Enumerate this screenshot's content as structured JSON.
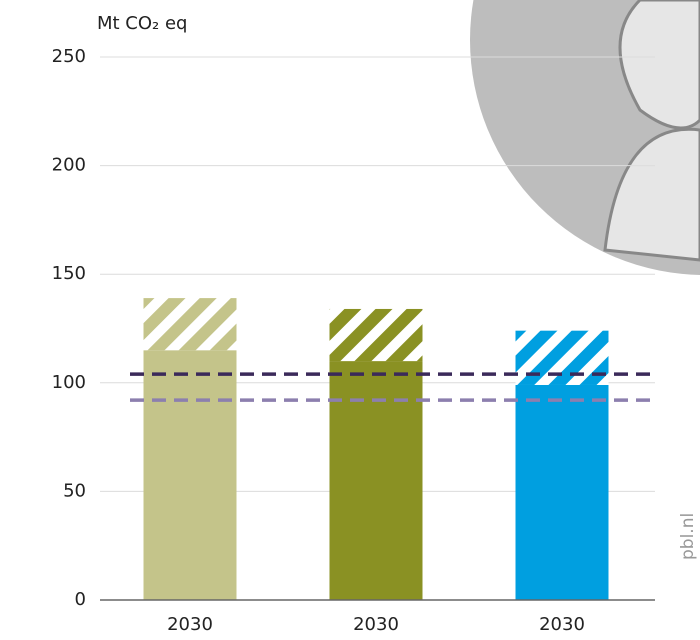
{
  "chart_data": {
    "type": "bar",
    "stacked": true,
    "y_label": "Mt CO₂ eq",
    "source": "pbl.nl",
    "categories": [
      "2030",
      "2030",
      "2030"
    ],
    "series": [
      {
        "values": [
          115,
          110,
          99
        ],
        "colors": [
          "#c4c48a",
          "#8a9123",
          "#009fe0"
        ],
        "hatched": false
      },
      {
        "values": [
          24,
          24,
          25
        ],
        "colors": [
          "#c4c48a",
          "#8a9123",
          "#009fe0"
        ],
        "hatched": true
      }
    ],
    "reference_lines": [
      {
        "value": 104,
        "color": "#3b2a5a"
      },
      {
        "value": 92,
        "color": "#8c7fae"
      }
    ],
    "ylim": [
      0,
      250
    ],
    "yticks": [
      0,
      50,
      100,
      150,
      200,
      250
    ],
    "grid": true
  }
}
